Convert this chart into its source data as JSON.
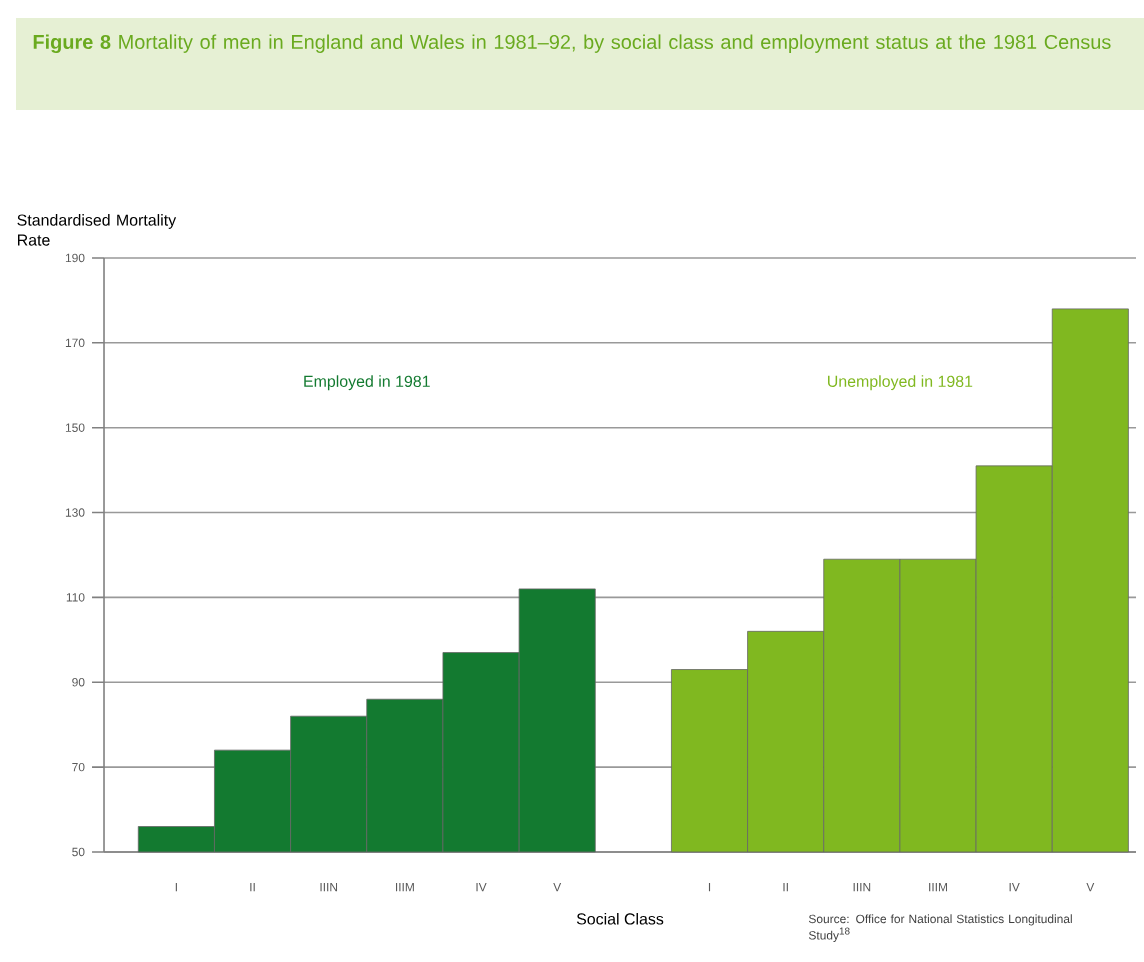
{
  "chart_data": {
    "type": "bar",
    "title": "**Figure 8** Mortality of men in England and Wales in 1981–92, by social class and employment status at the 1981 Census",
    "ylabel": "Standardised Mortality Rate",
    "xlabel": "Social Class",
    "categories": [
      "I",
      "II",
      "IIIN",
      "IIIM",
      "IV",
      "V",
      null,
      "I",
      "II",
      "IIIN",
      "IIIM",
      "IV",
      "V"
    ],
    "series": [
      {
        "name": "Employed in 1981",
        "color": "#137a30",
        "values": [
          56,
          74,
          82,
          86,
          97,
          112,
          null,
          null,
          null,
          null,
          null,
          null,
          null
        ]
      },
      {
        "name": "Unemployed in 1981",
        "color": "#80b820",
        "values": [
          null,
          null,
          null,
          null,
          null,
          null,
          null,
          93,
          102,
          119,
          119,
          141,
          178
        ]
      }
    ],
    "ylim": [
      50,
      190
    ],
    "yticks": [
      50,
      70,
      90,
      110,
      130,
      150,
      170,
      190
    ],
    "grid": "y",
    "annotations": [
      "Source: Office for National Statistics Longitudinal Study$^{18}$"
    ]
  }
}
